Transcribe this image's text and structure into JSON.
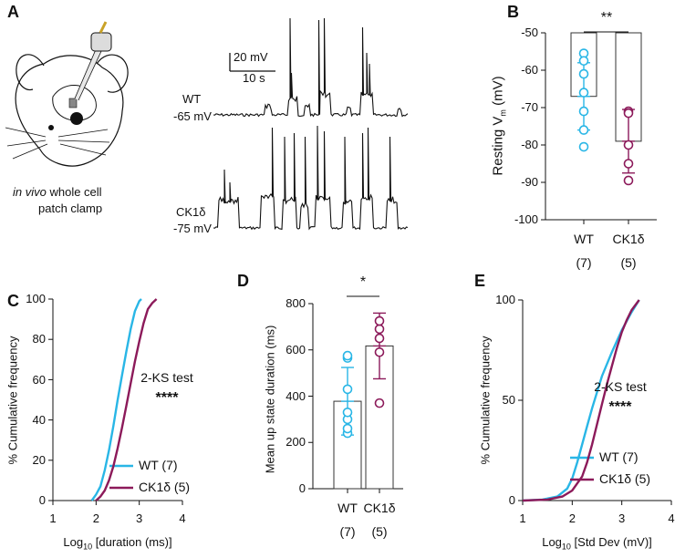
{
  "colors": {
    "wt": "#29b6e6",
    "ck1": "#8c1a5a",
    "ink": "#111111"
  },
  "panel_labels": [
    "A",
    "B",
    "C",
    "D",
    "E"
  ],
  "panel_a": {
    "caption_italic": "in vivo",
    "caption_rest": " whole cell",
    "caption_line2": "patch clamp",
    "scale_v": "20 mV",
    "scale_t": "10 s",
    "wt_name": "WT",
    "wt_vm": "-65 mV",
    "ck1_name": "CK1δ",
    "ck1_vm": "-75 mV"
  },
  "chart_data": [
    {
      "panel": "B",
      "type": "bar",
      "ylabel": "Resting V",
      "ylabel_sub": "m",
      "ylabel_unit": " (mV)",
      "ylim": [
        -100,
        -50
      ],
      "yticks": [
        -50,
        -60,
        -70,
        -80,
        -90,
        -100
      ],
      "categories": [
        "WT",
        "CK1δ"
      ],
      "n_labels": [
        "(7)",
        "(5)"
      ],
      "values": [
        -67,
        -79
      ],
      "sd": [
        9,
        8.5
      ],
      "points": [
        [
          -55.5,
          -57.5,
          -61,
          -66,
          -71,
          -76,
          -80.5
        ],
        [
          -71,
          -71.5,
          -80,
          -85,
          -89.5
        ]
      ],
      "significance": "**"
    },
    {
      "panel": "C",
      "type": "line",
      "xlabel_pre": "Log",
      "xlabel_sub": "10",
      "xlabel_post": " [duration (ms)]",
      "ylabel": "% Cumulative frequency",
      "xlim": [
        1.0,
        4.0
      ],
      "ylim": [
        0,
        100
      ],
      "xticks": [
        1.0,
        2.0,
        3.0,
        4.0
      ],
      "yticks": [
        0,
        20,
        40,
        60,
        80,
        100
      ],
      "test": "2-KS test",
      "stars": "****",
      "series": [
        {
          "name": "WT (7)",
          "x": [
            1.9,
            2.0,
            2.1,
            2.2,
            2.3,
            2.4,
            2.5,
            2.6,
            2.7,
            2.8,
            2.9,
            3.0,
            3.05
          ],
          "y": [
            0,
            3,
            7,
            15,
            25,
            37,
            50,
            62,
            74,
            85,
            94,
            99,
            100
          ]
        },
        {
          "name": "CK1δ (5)",
          "x": [
            2.0,
            2.1,
            2.2,
            2.3,
            2.4,
            2.5,
            2.6,
            2.7,
            2.8,
            2.9,
            3.0,
            3.1,
            3.2,
            3.3,
            3.4
          ],
          "y": [
            0,
            2,
            5,
            10,
            17,
            26,
            36,
            47,
            58,
            69,
            79,
            88,
            95,
            98,
            100
          ]
        }
      ]
    },
    {
      "panel": "D",
      "type": "bar",
      "ylabel": "Mean up state duration (ms)",
      "ylim": [
        0,
        800
      ],
      "yticks": [
        0,
        200,
        400,
        600,
        800
      ],
      "categories": [
        "WT",
        "CK1δ"
      ],
      "n_labels": [
        "(7)",
        "(5)"
      ],
      "values": [
        378,
        617
      ],
      "sd": [
        146,
        142
      ],
      "points": [
        [
          240,
          260,
          300,
          330,
          430,
          565,
          575
        ],
        [
          370,
          590,
          650,
          690,
          725
        ]
      ],
      "significance": "*"
    },
    {
      "panel": "E",
      "type": "line",
      "xlabel_pre": "Log",
      "xlabel_sub": "10",
      "xlabel_post": " [Std Dev (mV)]",
      "ylabel": "% Cumulative frequency",
      "xlim": [
        1.0,
        4.0
      ],
      "ylim": [
        0,
        100
      ],
      "xticks": [
        1.0,
        2.0,
        3.0,
        4.0
      ],
      "yticks": [
        0,
        50,
        100
      ],
      "test": "2-KS test",
      "stars": "****",
      "series": [
        {
          "name": "WT (7)",
          "x": [
            1.0,
            1.4,
            1.7,
            1.9,
            2.0,
            2.1,
            2.2,
            2.3,
            2.4,
            2.5,
            2.6,
            2.8,
            3.0,
            3.2,
            3.35
          ],
          "y": [
            0,
            0.5,
            2,
            6,
            11,
            19,
            28,
            37,
            46,
            54,
            62,
            74,
            85,
            94,
            100
          ]
        },
        {
          "name": "CK1δ (5)",
          "x": [
            1.0,
            1.5,
            1.8,
            2.0,
            2.2,
            2.3,
            2.4,
            2.5,
            2.6,
            2.7,
            2.8,
            2.9,
            3.0,
            3.1,
            3.2,
            3.35
          ],
          "y": [
            0,
            0.5,
            2,
            5,
            12,
            19,
            28,
            38,
            48,
            58,
            67,
            76,
            84,
            90,
            95,
            100
          ]
        }
      ]
    }
  ]
}
